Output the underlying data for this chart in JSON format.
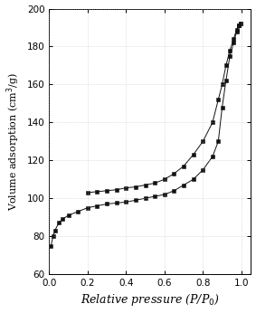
{
  "title": "",
  "xlabel": "Relative pressure (P/P₀)",
  "ylabel": "Volume adsorption (cm³/g)",
  "xlim": [
    0.0,
    1.05
  ],
  "ylim": [
    60,
    200
  ],
  "yticks": [
    60,
    80,
    100,
    120,
    140,
    160,
    180,
    200
  ],
  "xticks": [
    0.0,
    0.2,
    0.4,
    0.6,
    0.8,
    1.0
  ],
  "adsorption_x": [
    0.01,
    0.02,
    0.03,
    0.05,
    0.07,
    0.1,
    0.15,
    0.2,
    0.25,
    0.3,
    0.35,
    0.4,
    0.45,
    0.5,
    0.55,
    0.6,
    0.65,
    0.7,
    0.75,
    0.8,
    0.85,
    0.88,
    0.9,
    0.92,
    0.94,
    0.96,
    0.975,
    0.985,
    0.995
  ],
  "adsorption_y": [
    75,
    80,
    83,
    87,
    89,
    91,
    93,
    95,
    96,
    97,
    97.5,
    98,
    99,
    100,
    101,
    102,
    104,
    107,
    110,
    115,
    122,
    130,
    148,
    162,
    175,
    182,
    188,
    191,
    192
  ],
  "desorption_x": [
    0.995,
    0.985,
    0.975,
    0.96,
    0.94,
    0.92,
    0.9,
    0.88,
    0.85,
    0.8,
    0.75,
    0.7,
    0.65,
    0.6,
    0.55,
    0.5,
    0.45,
    0.4,
    0.35,
    0.3,
    0.25,
    0.2
  ],
  "desorption_y": [
    192,
    191,
    189,
    184,
    178,
    170,
    160,
    152,
    140,
    130,
    123,
    117,
    113,
    110,
    108,
    107,
    106,
    105.5,
    104.5,
    104,
    103.5,
    103
  ],
  "marker": "s",
  "marker_size": 3,
  "line_color": "#111111",
  "plot_bg_color": "#ffffff",
  "fig_bg_color": "#ffffff",
  "grid_color": "#bbbbbb",
  "xlabel_fontsize": 9,
  "ylabel_fontsize": 8,
  "tick_fontsize": 7.5
}
